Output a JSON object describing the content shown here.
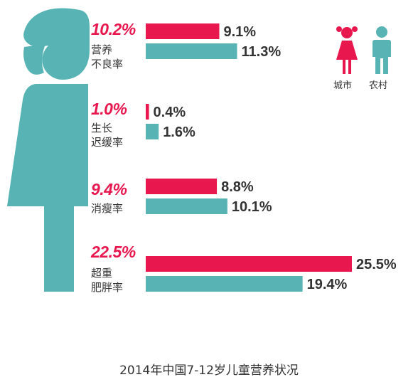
{
  "chart_data": {
    "type": "bar",
    "orientation": "horizontal",
    "title": "2014年中国7-12岁儿童营养状况",
    "legend": {
      "placement": "top-right"
    },
    "colors": {
      "urban": "#e8184f",
      "rural": "#58b4b4"
    },
    "value_suffix": "%",
    "categories": [
      {
        "id": "malnutrition",
        "name": "营养\n不良率",
        "overall": "10.2%"
      },
      {
        "id": "stunting",
        "name": "生长\n迟缓率",
        "overall": "1.0%"
      },
      {
        "id": "wasting",
        "name": "消瘦率",
        "overall": "9.4%"
      },
      {
        "id": "overweight",
        "name": "超重\n肥胖率",
        "overall": "22.5%"
      }
    ],
    "series": [
      {
        "name": "城市",
        "key": "urban",
        "icon": "girl-icon",
        "values": [
          9.1,
          0.4,
          8.8,
          25.5
        ]
      },
      {
        "name": "农村",
        "key": "rural",
        "icon": "boy-icon",
        "values": [
          11.3,
          1.6,
          10.1,
          19.4
        ]
      }
    ],
    "xlim": [
      0,
      25.5
    ]
  }
}
